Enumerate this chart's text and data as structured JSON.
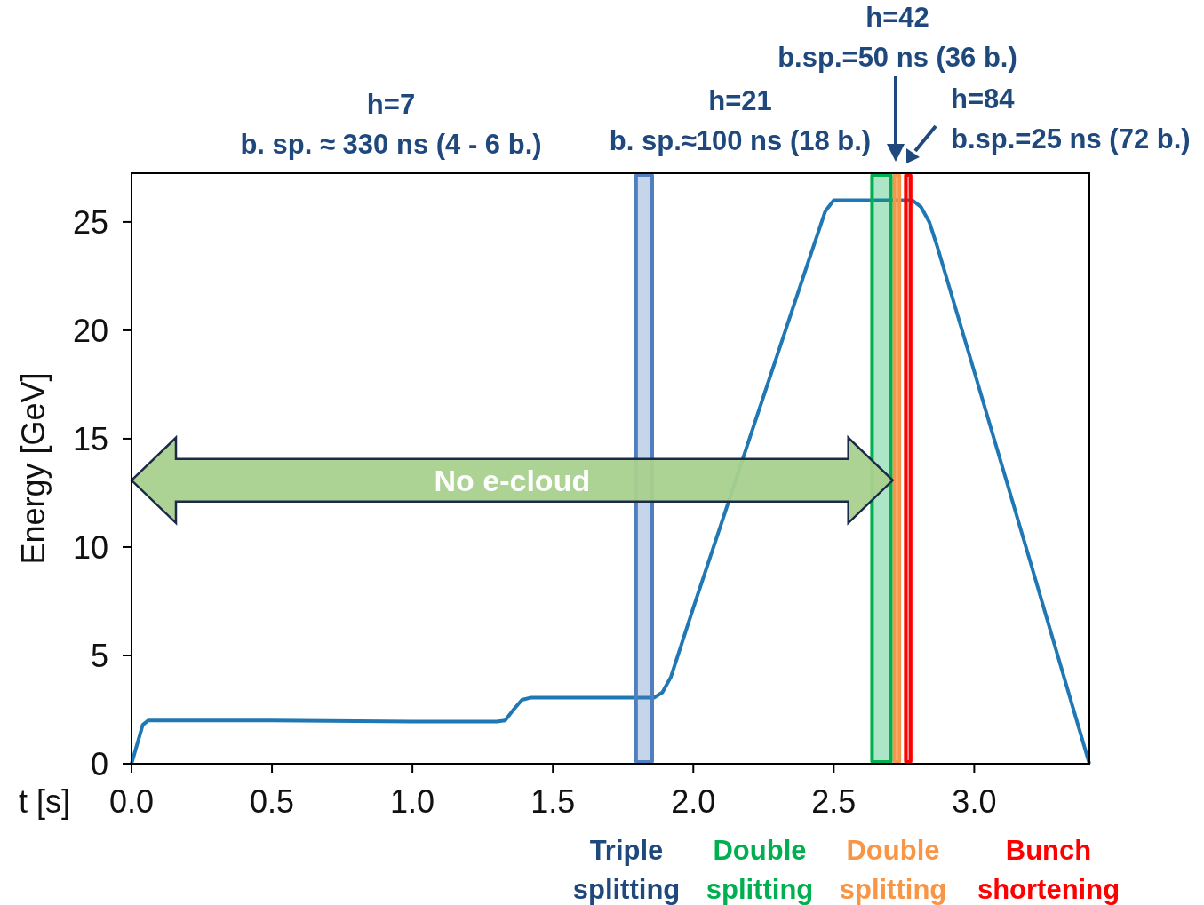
{
  "chart_data": {
    "type": "line",
    "xlabel": "t [s]",
    "ylabel": "Energy [GeV]",
    "xlim": [
      0,
      3.41
    ],
    "ylim": [
      0,
      27.25
    ],
    "xticks": [
      {
        "value": 0,
        "label": "0.0"
      },
      {
        "value": 0.5,
        "label": "0.5"
      },
      {
        "value": 1,
        "label": "1.0"
      },
      {
        "value": 1.5,
        "label": "1.5"
      },
      {
        "value": 2,
        "label": "2.0"
      },
      {
        "value": 2.5,
        "label": "2.5"
      },
      {
        "value": 3,
        "label": "3.0"
      }
    ],
    "yticks": [
      0,
      5,
      10,
      15,
      20,
      25
    ],
    "series": [
      {
        "color": "#1f77b4",
        "x": [
          0,
          0.04,
          0.06,
          0.1,
          0.5,
          1.0,
          1.3,
          1.33,
          1.36,
          1.39,
          1.42,
          1.6,
          1.86,
          1.89,
          1.92,
          1.95,
          2.0,
          2.2,
          2.4,
          2.47,
          2.5,
          2.6,
          2.78,
          2.81,
          2.84,
          2.87,
          3.0,
          3.2,
          3.41
        ],
        "values": [
          0,
          1.8,
          2.0,
          2.0,
          2.0,
          1.95,
          1.95,
          2.0,
          2.5,
          2.95,
          3.05,
          3.05,
          3.05,
          3.3,
          4.0,
          5.2,
          7.2,
          15.0,
          22.8,
          25.5,
          26.0,
          26.0,
          26.0,
          25.7,
          25.0,
          23.8,
          18.1,
          9.3,
          0
        ]
      }
    ],
    "bands": [
      {
        "axis": "x",
        "from": 1.79,
        "to": 1.86,
        "label": "Triple\nsplitting",
        "color": "#4f7fbf"
      },
      {
        "axis": "x",
        "from": 2.63,
        "to": 2.71,
        "label": "Double\nsplitting",
        "color": "#00b050"
      },
      {
        "axis": "x",
        "from": 2.71,
        "to": 2.74,
        "label": "Double\nsplitting",
        "color": "#f79646"
      },
      {
        "axis": "x",
        "from": 2.75,
        "to": 2.78,
        "label": "Bunch\nshortening",
        "color": "#ff0000"
      }
    ],
    "annotations": [
      "h=7\nb. sp. ≈ 330 ns (4 - 6 b.)",
      "h=21\nb. sp.≈100 ns (18 b.)",
      "h=42\nb.sp.=50 ns (36 b.)",
      "h=84\nb.sp.=25 ns (72 b.)",
      "No e-cloud"
    ]
  }
}
